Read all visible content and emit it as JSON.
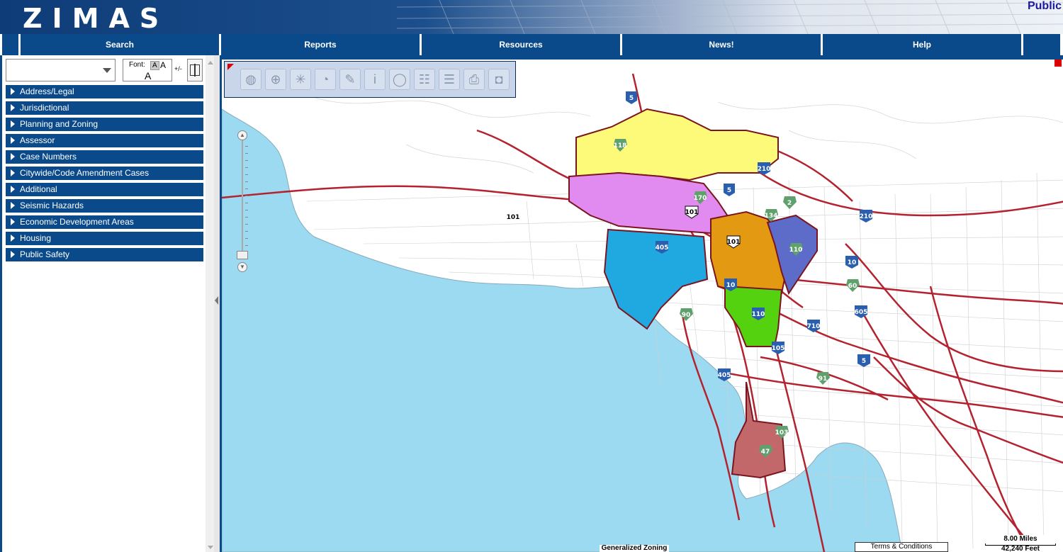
{
  "header": {
    "logo_text": "ZIMAS",
    "public_link": "Public"
  },
  "nav": {
    "items": [
      {
        "label": "Search"
      },
      {
        "label": "Reports"
      },
      {
        "label": "Resources"
      },
      {
        "label": "News!"
      },
      {
        "label": "Help"
      }
    ]
  },
  "left_panel": {
    "search_select_value": "",
    "font": {
      "label": "Font:",
      "small": "A",
      "medium": "A",
      "large": "A",
      "toggle": "+/-"
    },
    "sections": [
      {
        "label": "Address/Legal"
      },
      {
        "label": "Jurisdictional"
      },
      {
        "label": "Planning and Zoning"
      },
      {
        "label": "Assessor"
      },
      {
        "label": "Case Numbers"
      },
      {
        "label": "Citywide/Code Amendment Cases"
      },
      {
        "label": "Additional"
      },
      {
        "label": "Seismic Hazards"
      },
      {
        "label": "Economic Development Areas"
      },
      {
        "label": "Housing"
      },
      {
        "label": "Public Safety"
      }
    ]
  },
  "map": {
    "layer_label": "Generalized Zoning",
    "terms": "Terms & Conditions",
    "scale": {
      "miles": "8.00 Miles",
      "feet": "42,240 Feet"
    },
    "toolbar_icons": [
      "globe-icon",
      "crosshair-icon",
      "select-icon",
      "measure-icon",
      "draw-icon",
      "info-icon",
      "comment-icon",
      "layer-list-icon",
      "legend-icon",
      "print-icon",
      "camera-icon"
    ],
    "shields": [
      {
        "type": "interstate",
        "label": "5"
      },
      {
        "type": "interstate",
        "label": "5"
      },
      {
        "type": "interstate",
        "label": "210"
      },
      {
        "type": "interstate",
        "label": "210"
      },
      {
        "type": "interstate",
        "label": "405"
      },
      {
        "type": "interstate",
        "label": "405"
      },
      {
        "type": "interstate",
        "label": "10"
      },
      {
        "type": "interstate",
        "label": "10"
      },
      {
        "type": "interstate",
        "label": "110"
      },
      {
        "type": "interstate",
        "label": "105"
      },
      {
        "type": "interstate",
        "label": "710"
      },
      {
        "type": "interstate",
        "label": "605"
      },
      {
        "type": "interstate",
        "label": "5"
      },
      {
        "type": "us",
        "label": "101"
      },
      {
        "type": "us",
        "label": "101"
      },
      {
        "type": "plain",
        "label": "101"
      },
      {
        "type": "state",
        "label": "118"
      },
      {
        "type": "state",
        "label": "170"
      },
      {
        "type": "state",
        "label": "134"
      },
      {
        "type": "state",
        "label": "2"
      },
      {
        "type": "state",
        "label": "110"
      },
      {
        "type": "state",
        "label": "60"
      },
      {
        "type": "state",
        "label": "90"
      },
      {
        "type": "state",
        "label": "91"
      },
      {
        "type": "state",
        "label": "103"
      },
      {
        "type": "state",
        "label": "47"
      }
    ]
  }
}
